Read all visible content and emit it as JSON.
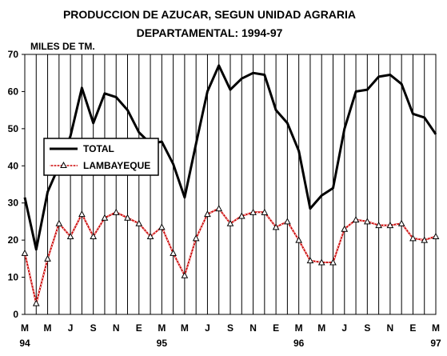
{
  "chart_data": {
    "type": "line",
    "title_line1": "PRODUCCION DE AZUCAR, SEGUN UNIDAD AGRARIA",
    "title_line2": "DEPARTAMENTAL: 1994-97",
    "ylabel": "MILES DE TM.",
    "ylim": [
      0,
      70
    ],
    "yticks": [
      0,
      10,
      20,
      30,
      40,
      50,
      60,
      70
    ],
    "x_tick_labels": [
      "M",
      "M",
      "J",
      "S",
      "N",
      "E",
      "M",
      "M",
      "J",
      "S",
      "N",
      "E",
      "M",
      "M",
      "J",
      "S",
      "N",
      "E",
      "M"
    ],
    "x_year_labels": [
      {
        "tick_index": 0,
        "label": "94"
      },
      {
        "tick_index": 6,
        "label": "95"
      },
      {
        "tick_index": 12,
        "label": "96"
      },
      {
        "tick_index": 18,
        "label": "97"
      }
    ],
    "months": 37,
    "grid": "vertical lines at each month",
    "legend_position": "left-middle",
    "series": [
      {
        "name": "TOTAL",
        "color": "#000000",
        "values": [
          31.5,
          17.5,
          33,
          40,
          48,
          61,
          51.5,
          59.5,
          58.5,
          55,
          49,
          46,
          46.5,
          40.5,
          31.5,
          46,
          60,
          67,
          60.5,
          63.5,
          65,
          64.5,
          55,
          51.5,
          44,
          28.5,
          32,
          34,
          50,
          60,
          60.5,
          64,
          64.5,
          62,
          54,
          53,
          48.5
        ]
      },
      {
        "name": "LAMBAYEQUE",
        "color": "#cc0000",
        "values": [
          16.5,
          3,
          15,
          24.5,
          21,
          27,
          21,
          26,
          27.5,
          26,
          24.5,
          21,
          23.5,
          16.5,
          10.5,
          20.5,
          27,
          28.5,
          24.5,
          26.5,
          27.5,
          27.5,
          23.5,
          25,
          20,
          14.5,
          14,
          14,
          23,
          25.5,
          25,
          24,
          24,
          24.5,
          20.5,
          20,
          21
        ]
      }
    ]
  }
}
